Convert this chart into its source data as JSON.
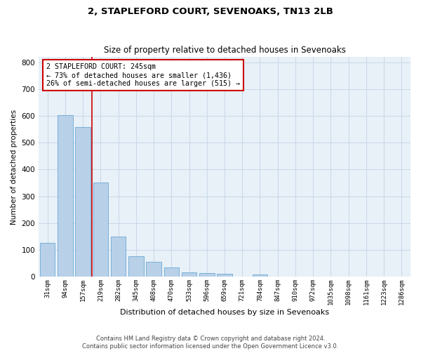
{
  "title": "2, STAPLEFORD COURT, SEVENOAKS, TN13 2LB",
  "subtitle": "Size of property relative to detached houses in Sevenoaks",
  "xlabel": "Distribution of detached houses by size in Sevenoaks",
  "ylabel": "Number of detached properties",
  "footer_line1": "Contains HM Land Registry data © Crown copyright and database right 2024.",
  "footer_line2": "Contains public sector information licensed under the Open Government Licence v3.0.",
  "categories": [
    "31sqm",
    "94sqm",
    "157sqm",
    "219sqm",
    "282sqm",
    "345sqm",
    "408sqm",
    "470sqm",
    "533sqm",
    "596sqm",
    "659sqm",
    "721sqm",
    "784sqm",
    "847sqm",
    "910sqm",
    "972sqm",
    "1035sqm",
    "1098sqm",
    "1161sqm",
    "1223sqm",
    "1286sqm"
  ],
  "values": [
    125,
    602,
    557,
    350,
    150,
    76,
    55,
    35,
    15,
    14,
    10,
    0,
    8,
    0,
    0,
    0,
    0,
    0,
    0,
    0,
    0
  ],
  "bar_color": "#b8d0e8",
  "bar_edge_color": "#6aaad4",
  "grid_color": "#c8d8e8",
  "background_color": "#e8f0f8",
  "annotation_text": "2 STAPLEFORD COURT: 245sqm\n← 73% of detached houses are smaller (1,436)\n26% of semi-detached houses are larger (515) →",
  "annotation_box_color": "#ffffff",
  "annotation_box_edge_color": "#cc0000",
  "vline_color": "#cc0000",
  "vline_position": 2.5,
  "ylim": [
    0,
    820
  ],
  "yticks": [
    0,
    100,
    200,
    300,
    400,
    500,
    600,
    700,
    800
  ]
}
